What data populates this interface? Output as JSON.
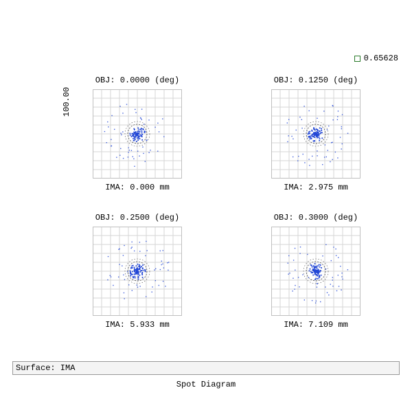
{
  "legend": {
    "label": "0.65628"
  },
  "yaxis_label": "100.00",
  "surface_label": "Surface: IMA",
  "diagram_title": "Spot Diagram",
  "panel_style": {
    "box_size": 130,
    "grid_divisions": 10,
    "grid_color": "#d6d6d6",
    "border_color": "#bfbfbf",
    "airy_color": "#444444",
    "airy_r1": 14,
    "airy_r2": 18,
    "spot_color": "#2247d6",
    "core_radius": 12,
    "core_points": 120,
    "halo_points": 50,
    "halo_radius": 48
  },
  "panels": [
    {
      "obj_label": "OBJ: 0.0000 (deg)",
      "ima_label": "IMA: 0.000 mm",
      "seed": 1
    },
    {
      "obj_label": "OBJ: 0.1250 (deg)",
      "ima_label": "IMA: 2.975 mm",
      "seed": 2
    },
    {
      "obj_label": "OBJ: 0.2500 (deg)",
      "ima_label": "IMA: 5.933 mm",
      "seed": 3
    },
    {
      "obj_label": "OBJ: 0.3000 (deg)",
      "ima_label": "IMA: 7.109 mm",
      "seed": 4
    }
  ]
}
